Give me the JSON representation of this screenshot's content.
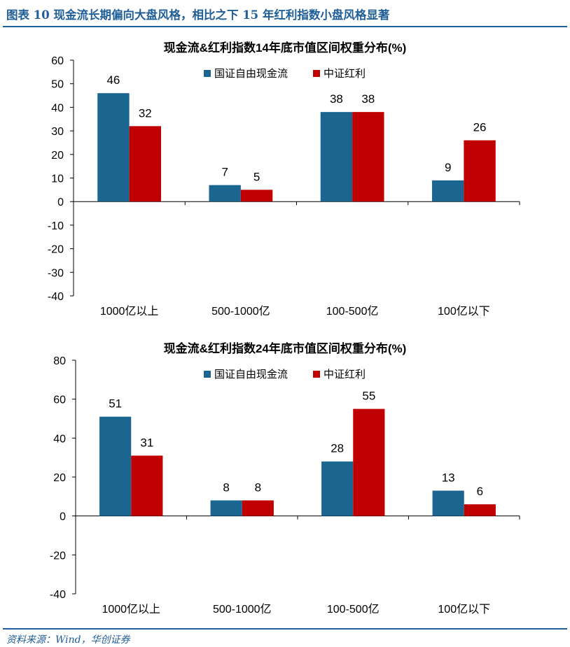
{
  "figure": {
    "title": "图表 10  现金流长期偏向大盘风格，相比之下 15 年红利指数小盘风格显著",
    "source": "资料来源：Wind，华创证券"
  },
  "colors": {
    "series1": "#1b6690",
    "series2": "#c00000",
    "header": "#1f5e96"
  },
  "chart_data": [
    {
      "type": "bar",
      "title": "现金流&红利指数14年底市值区间权重分布(%)",
      "categories": [
        "1000亿以上",
        "500-1000亿",
        "100-500亿",
        "100亿以下"
      ],
      "series": [
        {
          "name": "国证自由现金流",
          "values": [
            46,
            7,
            38,
            9
          ],
          "labels": [
            "46",
            "7",
            "38",
            "9"
          ]
        },
        {
          "name": "中证红利",
          "values": [
            32,
            5,
            38,
            26
          ],
          "labels": [
            "32",
            "5",
            "38",
            "26"
          ]
        }
      ],
      "ylim": [
        -40,
        60
      ],
      "yticks": [
        "60",
        "50",
        "40",
        "30",
        "20",
        "10",
        "0",
        "-10",
        "-20",
        "-30",
        "-40"
      ],
      "legend": "top-center",
      "grid": false
    },
    {
      "type": "bar",
      "title": "现金流&红利指数24年底市值区间权重分布(%)",
      "categories": [
        "1000亿以上",
        "500-1000亿",
        "100-500亿",
        "100亿以下"
      ],
      "series": [
        {
          "name": "国证自由现金流",
          "values": [
            51,
            8,
            28,
            13
          ],
          "labels": [
            "51",
            "8",
            "28",
            "13"
          ]
        },
        {
          "name": "中证红利",
          "values": [
            31,
            8,
            55,
            6
          ],
          "labels": [
            "31",
            "8",
            "55",
            "6"
          ]
        }
      ],
      "ylim": [
        -40,
        80
      ],
      "yticks": [
        "80",
        "60",
        "40",
        "20",
        "0",
        "-20",
        "-40"
      ],
      "legend": "top-center",
      "grid": false
    }
  ]
}
